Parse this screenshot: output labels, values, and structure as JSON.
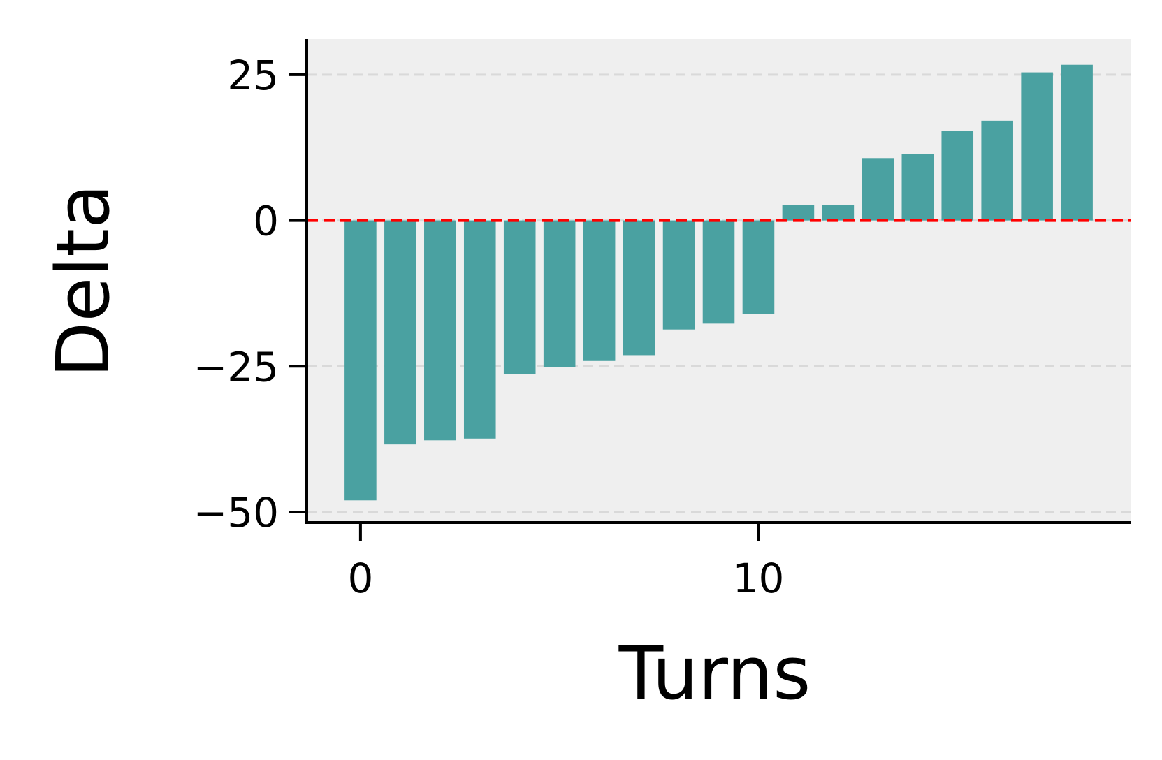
{
  "chart_data": {
    "type": "bar",
    "title": "",
    "xlabel": "Turns",
    "ylabel": "Delta",
    "x": [
      0,
      1,
      2,
      3,
      4,
      5,
      6,
      7,
      8,
      9,
      10,
      11,
      12,
      13,
      14,
      15,
      16,
      17,
      18
    ],
    "values": [
      -48,
      -38.4,
      -37.7,
      -37.4,
      -26.4,
      -25.1,
      -24.1,
      -23.1,
      -18.7,
      -17.7,
      -16.1,
      2.6,
      2.6,
      10.7,
      11.4,
      15.4,
      17.1,
      25.4,
      26.7
    ],
    "xlim": [
      -1.35,
      19.35
    ],
    "ylim": [
      -51.8,
      31.1
    ],
    "xticks": [
      0,
      10
    ],
    "yticks": [
      -50,
      -25,
      0,
      25
    ],
    "xtick_labels": [
      "0",
      "10"
    ],
    "ytick_labels": [
      "−50",
      "−25",
      "0",
      "25"
    ],
    "reference_line": {
      "y": 0,
      "style": "dashed",
      "color": "#ff0000"
    },
    "grid": {
      "axis": "y",
      "style": "dashed",
      "color": "#d9d9d9"
    },
    "colors": {
      "bar": "#4aa1a1",
      "plot_background": "#efefef"
    }
  }
}
